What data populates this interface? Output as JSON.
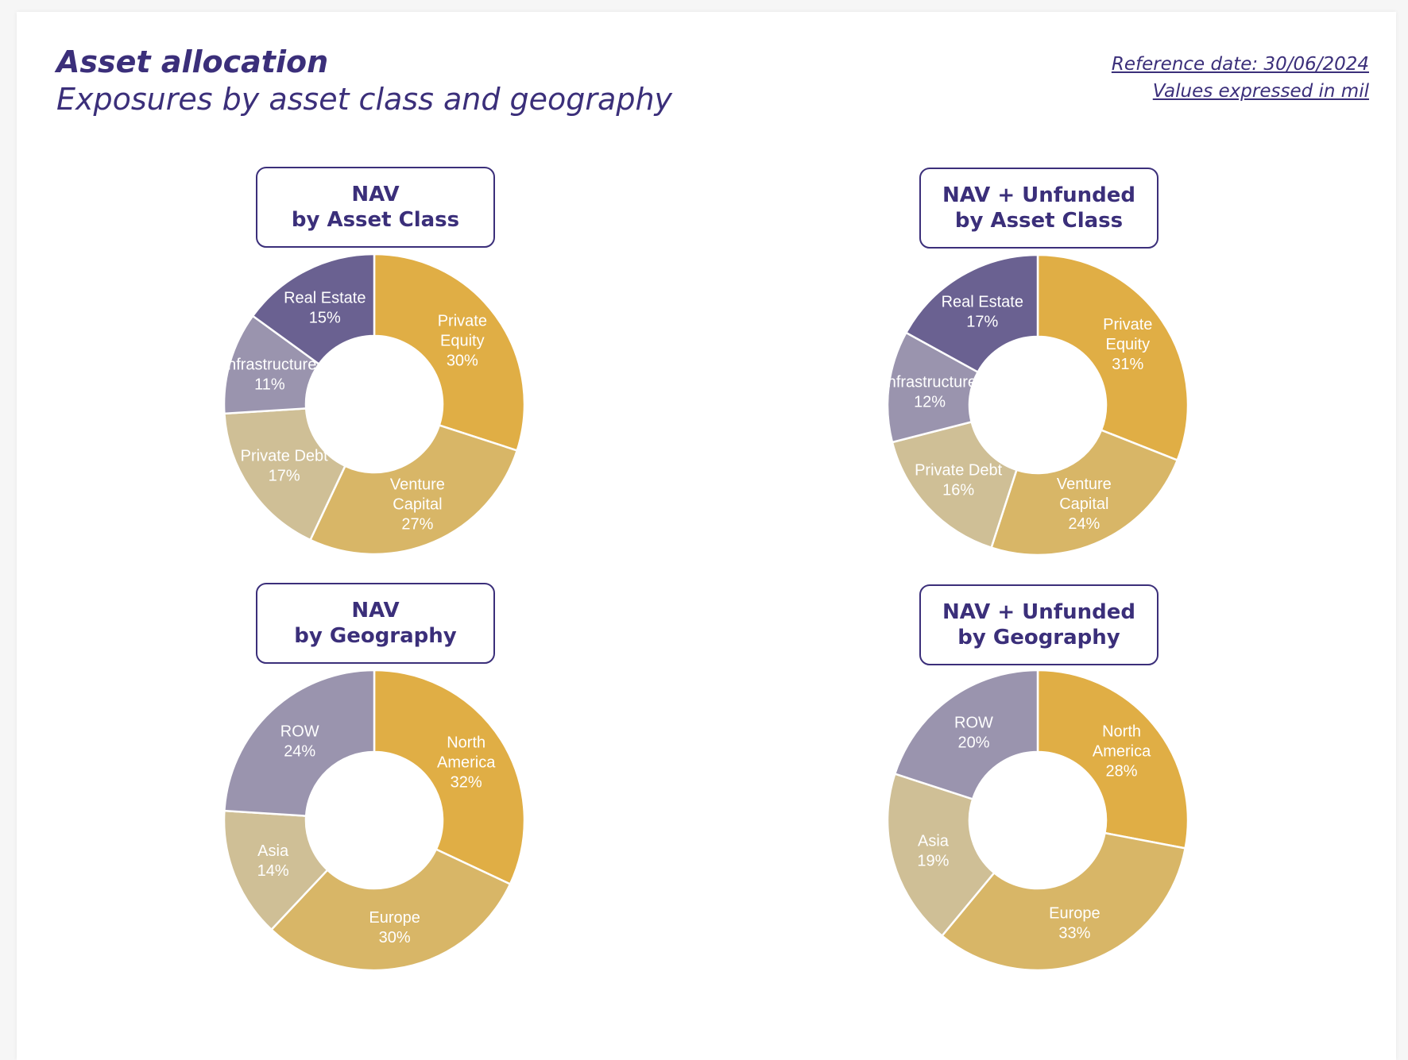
{
  "header": {
    "title": "Asset allocation",
    "subtitle": "Exposures by asset class and geography",
    "reference_date": "Reference date: 30/06/2024",
    "units_note": "Values expressed in mil"
  },
  "chart_data": [
    {
      "type": "pie",
      "style": "donut",
      "title_line1": "NAV",
      "title_line2": "by Asset Class",
      "categories": [
        "Private Equity",
        "Venture Capital",
        "Private Debt",
        "Infrastructure",
        "Real Estate"
      ],
      "label_lines": [
        [
          "Private",
          "Equity"
        ],
        [
          "Venture",
          "Capital"
        ],
        [
          "Private Debt"
        ],
        [
          "Infrastructure"
        ],
        [
          "Real Estate"
        ]
      ],
      "values": [
        30,
        27,
        17,
        11,
        15
      ],
      "unit": "%",
      "colors": [
        "#e0ae45",
        "#d8b667",
        "#cfbf96",
        "#9a94ae",
        "#6a6191"
      ]
    },
    {
      "type": "pie",
      "style": "donut",
      "title_line1": "NAV + Unfunded",
      "title_line2": "by Asset Class",
      "categories": [
        "Private Equity",
        "Venture Capital",
        "Private Debt",
        "Infrastructure",
        "Real Estate"
      ],
      "label_lines": [
        [
          "Private",
          "Equity"
        ],
        [
          "Venture",
          "Capital"
        ],
        [
          "Private Debt"
        ],
        [
          "Infrastructure"
        ],
        [
          "Real Estate"
        ]
      ],
      "values": [
        31,
        24,
        16,
        12,
        17
      ],
      "unit": "%",
      "colors": [
        "#e0ae45",
        "#d8b667",
        "#cfbf96",
        "#9a94ae",
        "#6a6191"
      ]
    },
    {
      "type": "pie",
      "style": "donut",
      "title_line1": "NAV",
      "title_line2": "by Geography",
      "categories": [
        "North America",
        "Europe",
        "Asia",
        "ROW"
      ],
      "label_lines": [
        [
          "North",
          "America"
        ],
        [
          "Europe"
        ],
        [
          "Asia"
        ],
        [
          "ROW"
        ]
      ],
      "values": [
        32,
        30,
        14,
        24
      ],
      "unit": "%",
      "colors": [
        "#e0ae45",
        "#d8b667",
        "#cfbf96",
        "#9a94ae"
      ]
    },
    {
      "type": "pie",
      "style": "donut",
      "title_line1": "NAV + Unfunded",
      "title_line2": "by Geography",
      "categories": [
        "North America",
        "Europe",
        "Asia",
        "ROW"
      ],
      "label_lines": [
        [
          "North",
          "America"
        ],
        [
          "Europe"
        ],
        [
          "Asia"
        ],
        [
          "ROW"
        ]
      ],
      "values": [
        28,
        33,
        19,
        20
      ],
      "unit": "%",
      "colors": [
        "#e0ae45",
        "#d8b667",
        "#cfbf96",
        "#9a94ae"
      ]
    }
  ]
}
